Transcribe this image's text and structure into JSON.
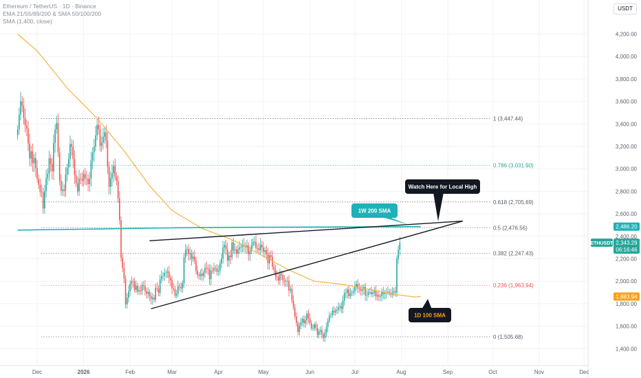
{
  "header": {
    "line1": "Ethereum / TetherUS · 1D · Binance",
    "line2": "EMA 21/55/89/200 & SMA 50/100/200",
    "line3": "SMA (1,400, close)"
  },
  "currency_label": "USDT",
  "colors": {
    "up": "#26a69a",
    "down": "#ef5350",
    "sma_orange": "#f5b342",
    "sma_teal": "#1fb1b8",
    "fib_gray": "#555b66",
    "fib_teal": "#26a69a",
    "fib_red": "#ef5350",
    "axis_text": "#5d606b",
    "callout_bg": "#131722"
  },
  "chart_data": {
    "type": "candlestick",
    "symbol": "ETHUSDT",
    "y_axis": {
      "ticks": [
        "4,200.00",
        "4,000.00",
        "3,800.00",
        "3,600.00",
        "3,400.00",
        "3,200.00",
        "3,000.00",
        "2,800.00",
        "2,600.00",
        "2,400.00",
        "2,200.00",
        "2,000.00",
        "1,800.00",
        "1,600.00",
        "1,400.00"
      ],
      "tick_values": [
        4200,
        4000,
        3800,
        3600,
        3400,
        3200,
        3000,
        2800,
        2600,
        2400,
        2200,
        2000,
        1800,
        1600,
        1400
      ],
      "range": [
        1330,
        4430
      ]
    },
    "x_axis": {
      "labels": [
        "Dec",
        "2026",
        "Feb",
        "Mar",
        "Apr",
        "May",
        "Jun",
        "Jul",
        "Aug",
        "Sep",
        "Oct",
        "Nov",
        "Dec"
      ],
      "day_index": [
        0,
        31,
        62,
        90,
        121,
        151,
        182,
        212,
        243,
        274,
        304,
        335,
        365
      ]
    },
    "candle_series_close": [
      3350,
      3482,
      3601,
      3563,
      3453,
      3387,
      3357,
      3226,
      3092,
      3156,
      3051,
      3096,
      3009,
      2913,
      2858,
      2794,
      2789,
      2648,
      2801,
      2916,
      2956,
      3094,
      3043,
      2978,
      3230,
      3352,
      3407,
      3147,
      2894,
      2805,
      2815,
      2804,
      2949,
      3010,
      3087,
      3221,
      3196,
      3088,
      2944,
      2873,
      2799,
      2914,
      2909,
      2895,
      2956,
      2916,
      2911,
      2864,
      2916,
      3076,
      3145,
      3199,
      3297,
      3391,
      3353,
      3205,
      3231,
      3287,
      3325,
      3251,
      3019,
      2840,
      2917,
      2961,
      3026,
      2934,
      2891,
      2738,
      2543,
      2210,
      2119,
      2021,
      1795,
      1853,
      1910,
      1978,
      2000,
      1999,
      1922,
      1960,
      1908,
      1919,
      1912,
      1963,
      1959,
      1912,
      1889,
      1906,
      1869,
      1842,
      1853,
      1835,
      1941,
      1935,
      1896,
      2018,
      2044,
      2047,
      2073,
      2077,
      2087,
      2030,
      2007,
      1938,
      1931,
      1873,
      1887,
      1954,
      1948,
      1936,
      1983,
      2211,
      2279,
      2286,
      2241,
      2249,
      2198,
      2219,
      2182,
      2093,
      2057,
      2047,
      2068,
      2046,
      2076,
      2121,
      2118,
      2108,
      2019,
      2094,
      2092,
      2118,
      2115,
      2084,
      2093,
      2157,
      2202,
      2302,
      2321,
      2286,
      2183,
      2228,
      2214,
      2345,
      2274,
      2284,
      2245,
      2283,
      2300,
      2304,
      2324,
      2311,
      2301,
      2318,
      2241,
      2268,
      2321,
      2349,
      2352,
      2295,
      2295,
      2277,
      2324,
      2302,
      2262,
      2276,
      2244,
      2160,
      2232,
      2217,
      2129,
      2104,
      2041,
      2038,
      2006,
      2067,
      2055,
      2009,
      2000,
      2000,
      2004,
      1917,
      1932,
      1829,
      1768,
      1686,
      1627,
      1547,
      1606,
      1634,
      1665,
      1626,
      1653,
      1712,
      1671,
      1626,
      1581,
      1581,
      1616,
      1585,
      1522,
      1555,
      1565,
      1524,
      1497,
      1540,
      1591,
      1647,
      1694,
      1698,
      1738,
      1722,
      1739,
      1747,
      1768,
      1778,
      1754,
      1828,
      1896,
      1896,
      1927,
      1866,
      1894,
      1898,
      1909,
      1952,
      1977,
      1935,
      1932,
      1915,
      1927,
      1950,
      1874,
      1879,
      1904,
      1904,
      1885,
      1899,
      1912,
      1864,
      1877,
      1862,
      1866,
      1904,
      1886,
      1895,
      1901,
      1906,
      1895,
      1881,
      1900,
      1911,
      1898,
      2203,
      2279,
      2343
    ],
    "candle_start_day": -13,
    "sma_100_1d": {
      "name": "1D 100 SMA",
      "points": [
        [
          -13,
          4200
        ],
        [
          0,
          4050
        ],
        [
          20,
          3720
        ],
        [
          40,
          3450
        ],
        [
          58,
          3160
        ],
        [
          75,
          2850
        ],
        [
          90,
          2630
        ],
        [
          110,
          2470
        ],
        [
          130,
          2370
        ],
        [
          150,
          2230
        ],
        [
          168,
          2100
        ],
        [
          185,
          2000
        ],
        [
          205,
          1970
        ],
        [
          225,
          1920
        ],
        [
          240,
          1880
        ],
        [
          252,
          1860
        ],
        [
          256,
          1863.94
        ]
      ]
    },
    "sma_200_1w": {
      "name": "1W 200 SMA",
      "points": [
        [
          -13,
          2455
        ],
        [
          40,
          2465
        ],
        [
          90,
          2475
        ],
        [
          140,
          2480
        ],
        [
          200,
          2483
        ],
        [
          256,
          2486.2
        ]
      ]
    },
    "trendlines": [
      {
        "from": [
          75,
          2360
        ],
        "to": [
          284,
          2535
        ]
      },
      {
        "from": [
          76,
          1755
        ],
        "to": [
          284,
          2535
        ]
      }
    ],
    "fib_levels": [
      {
        "label": "1 (3,447.44)",
        "value": 3447.44,
        "color": "#555b66"
      },
      {
        "label": "0.786 (3,031.90)",
        "value": 3031.9,
        "color": "#26a69a"
      },
      {
        "label": "0.618 (2,705.69)",
        "value": 2705.69,
        "color": "#555b66"
      },
      {
        "label": "0.5 (2,476.56)",
        "value": 2476.56,
        "color": "#555b66"
      },
      {
        "label": "0.382 (2,247.43)",
        "value": 2247.43,
        "color": "#555b66"
      },
      {
        "label": "0.236 (1,963.94)",
        "value": 1963.94,
        "color": "#ef5350"
      },
      {
        "label": "0 (1,505.68)",
        "value": 1505.68,
        "color": "#555b66"
      }
    ],
    "annotations": [
      {
        "text": "1W 200 SMA",
        "style": "teal"
      },
      {
        "text": "Watch Here for Local High",
        "style": "dark"
      },
      {
        "text": "1D 100 SMA",
        "style": "dark-orange"
      }
    ],
    "price_tags": [
      {
        "text": "2,486.20",
        "value": 2486.2,
        "color": "#1fb1b8"
      },
      {
        "text": "1,863.94",
        "value": 1863.94,
        "color": "#f7a21b"
      }
    ],
    "last_price": {
      "symbol": "ETHUSDT",
      "price": "2,343.29",
      "value": 2343.29,
      "countdown": "06:16:46",
      "color": "#26a69a"
    }
  }
}
